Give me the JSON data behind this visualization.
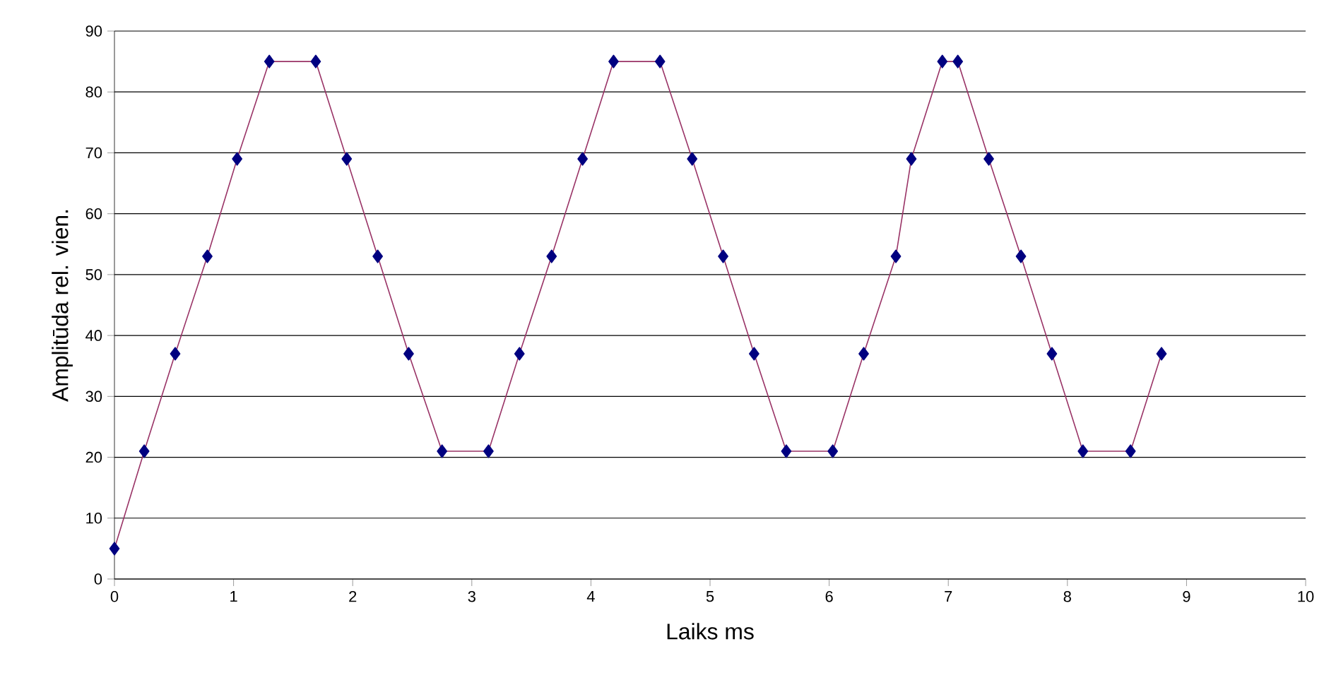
{
  "chart_data": {
    "type": "line",
    "xlabel": "Laiks ms",
    "ylabel": "Amplitūda rel. vien.",
    "x": [
      0,
      0.25,
      0.51,
      0.78,
      1.03,
      1.3,
      1.69,
      1.95,
      2.21,
      2.47,
      2.75,
      3.14,
      3.4,
      3.67,
      3.93,
      4.19,
      4.58,
      4.85,
      5.11,
      5.37,
      5.64,
      6.03,
      6.29,
      6.56,
      6.69,
      6.95,
      7.08,
      7.34,
      7.61,
      7.87,
      8.13,
      8.53,
      8.79
    ],
    "series": [
      {
        "color": "#993366",
        "values": [
          5,
          21,
          37,
          53,
          69,
          85,
          85,
          69,
          53,
          37,
          21,
          21,
          37,
          53,
          69,
          85,
          85,
          69,
          53,
          37,
          21,
          21,
          37,
          53,
          69,
          85,
          85,
          69,
          53,
          37,
          21,
          21,
          37
        ]
      }
    ],
    "xlim": [
      0,
      10
    ],
    "ylim": [
      0,
      90
    ],
    "xticks": [
      0,
      1,
      2,
      3,
      4,
      5,
      6,
      7,
      8,
      9,
      10
    ],
    "yticks": [
      0,
      10,
      20,
      30,
      40,
      50,
      60,
      70,
      80,
      90
    ],
    "grid": "y",
    "marker": "diamond",
    "line_style": "solid"
  }
}
